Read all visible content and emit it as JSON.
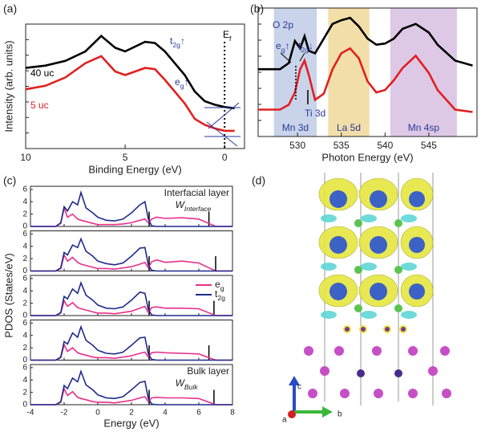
{
  "panel_labels": [
    "(a)",
    "(b)",
    "(c)",
    "(d)"
  ],
  "chart_data": [
    {
      "type": "line",
      "xlabel": "Binding Energy (eV)",
      "ylabel": "Intensity (arb. units)",
      "xlim": [
        10,
        -1
      ],
      "xticks": [
        10,
        5,
        0
      ],
      "ylim": [
        0,
        1.05
      ],
      "x": [
        10,
        9,
        8,
        7,
        6.2,
        5.5,
        5,
        4,
        3.5,
        3,
        2,
        1.5,
        1,
        0.5,
        0,
        -0.5
      ],
      "series": [
        {
          "name": "40 uc",
          "color": "#000000",
          "values": [
            0.68,
            0.7,
            0.74,
            0.82,
            0.95,
            0.85,
            0.82,
            0.9,
            0.89,
            0.82,
            0.62,
            0.48,
            0.4,
            0.37,
            0.35,
            0.34
          ]
        },
        {
          "name": "5 uc",
          "color": "#e02020",
          "values": [
            0.5,
            0.53,
            0.6,
            0.72,
            0.78,
            0.65,
            0.62,
            0.68,
            0.67,
            0.58,
            0.38,
            0.25,
            0.2,
            0.17,
            0.15,
            0.15
          ]
        }
      ],
      "fermi_level": 0,
      "annotations": [
        {
          "base": "t",
          "sub": "2g",
          "tail": "↑",
          "color": "#2a3a9a"
        },
        {
          "base": "e",
          "sub": "g",
          "tail": "↑",
          "color": "#2a3a9a"
        },
        {
          "base": "E",
          "sub": "f",
          "color": "#000000"
        }
      ]
    },
    {
      "type": "line",
      "xlabel": "Photon Energy (eV)",
      "xlim": [
        525.5,
        550.5
      ],
      "xticks": [
        530,
        535,
        540,
        545
      ],
      "ylim": [
        0,
        1.05
      ],
      "x": [
        525.5,
        528,
        529,
        529.7,
        530.3,
        530.8,
        531.3,
        532,
        533,
        534,
        535,
        536,
        537,
        538,
        539,
        540,
        541,
        542,
        543.5,
        545,
        546,
        548,
        550
      ],
      "series": [
        {
          "name": "black",
          "color": "#000000",
          "values": [
            0.55,
            0.55,
            0.6,
            0.78,
            0.72,
            0.82,
            0.7,
            0.68,
            0.8,
            0.92,
            0.95,
            0.97,
            0.9,
            0.8,
            0.75,
            0.76,
            0.8,
            0.88,
            0.92,
            0.85,
            0.75,
            0.62,
            0.58
          ]
        },
        {
          "name": "red",
          "color": "#e02020",
          "values": [
            0.22,
            0.22,
            0.26,
            0.36,
            0.55,
            0.62,
            0.5,
            0.3,
            0.35,
            0.55,
            0.68,
            0.72,
            0.64,
            0.45,
            0.36,
            0.38,
            0.46,
            0.56,
            0.66,
            0.52,
            0.38,
            0.22,
            0.2
          ]
        }
      ],
      "regions": [
        {
          "label": "Mn 3d",
          "from": 527.3,
          "to": 532.2,
          "color": "#c9d4ea"
        },
        {
          "label": "La 5d",
          "from": 533.5,
          "to": 538.2,
          "color": "#f2dea8"
        },
        {
          "label": "Mn 4sp",
          "from": 540.6,
          "to": 548.2,
          "color": "#ddc8e6"
        }
      ],
      "annotations": [
        {
          "base": "O 2p",
          "color": "#2a3a9a"
        },
        {
          "base": "e",
          "sub": "g",
          "tail": "↑",
          "color": "#2a3a9a"
        },
        {
          "base": "t",
          "sub": "2g",
          "tail": "↓",
          "color": "#2a3a9a"
        },
        {
          "base": "Ti 3d",
          "color": "#2a3a9a"
        }
      ]
    },
    {
      "type": "stack",
      "xlabel": "Energy (eV)",
      "ylabel": "PDOS (States/eV)",
      "xlim": [
        -4,
        8
      ],
      "xticks": [
        -4,
        -2,
        0,
        2,
        4,
        6,
        8
      ],
      "ylim": [
        0,
        6.5
      ],
      "yticks": [
        0,
        2,
        4,
        6
      ],
      "x": [
        -4,
        -3,
        -2.5,
        -2.2,
        -2,
        -1.8,
        -1.5,
        -1.2,
        -1,
        -0.7,
        -0.3,
        0,
        0.5,
        1,
        1.5,
        2,
        2.5,
        2.8,
        3,
        3.2,
        3.5,
        4,
        5,
        6,
        7,
        8
      ],
      "series": [
        {
          "name": {
            "base": "e",
            "sub": "g"
          },
          "color": "#e8308a"
        },
        {
          "name": {
            "base": "t",
            "sub": "2g"
          },
          "color": "#1f2a8c"
        }
      ],
      "legend_subplot": 2,
      "subplots": [
        {
          "label": "Interfacial layer",
          "w": {
            "base": "W",
            "sub": "Interface"
          },
          "markers": [
            3.05,
            6.6
          ],
          "series_values": [
            [
              0,
              0,
              0,
              0.5,
              3,
              1.5,
              2,
              1.2,
              1,
              0.8,
              0.5,
              0.3,
              0.3,
              0.3,
              0.4,
              0.6,
              1,
              1.2,
              0.6,
              1.2,
              1.5,
              1.3,
              1.4,
              1.2,
              0,
              0
            ],
            [
              0,
              0,
              0,
              0.6,
              3.2,
              2.5,
              4,
              3.5,
              5.5,
              3,
              2.2,
              1.5,
              1,
              0.9,
              1.2,
              2.2,
              3.5,
              4,
              1.2,
              0.1,
              0,
              0,
              0,
              0,
              0,
              0
            ]
          ]
        },
        {
          "markers": [
            3.05,
            7.0
          ],
          "series_values": [
            [
              0,
              0,
              0,
              0.4,
              2.6,
              1.6,
              2.2,
              1.4,
              1.1,
              0.9,
              0.6,
              0.4,
              0.4,
              0.3,
              0.5,
              0.7,
              1.1,
              1.4,
              0.5,
              1.5,
              1.8,
              1.4,
              1.6,
              1.3,
              0,
              0
            ],
            [
              0,
              0,
              0,
              0.5,
              3,
              2.6,
              4.2,
              3.8,
              5.2,
              3.2,
              2.4,
              1.6,
              1.2,
              1,
              1.3,
              2.4,
              3.7,
              3.8,
              1,
              0.1,
              0,
              0,
              0,
              0,
              0,
              0
            ]
          ]
        },
        {
          "markers": [
            3.05,
            6.9
          ],
          "series_values": [
            [
              0,
              0,
              0,
              0.4,
              2.4,
              1.5,
              2.1,
              1.3,
              1.1,
              0.9,
              0.6,
              0.4,
              0.4,
              0.3,
              0.5,
              0.7,
              1.2,
              1.5,
              0.5,
              1.3,
              1.4,
              1.2,
              1.2,
              1.1,
              0,
              0
            ],
            [
              0,
              0,
              0,
              0.5,
              3.1,
              2.7,
              4.3,
              3.6,
              5.3,
              3.3,
              2.5,
              1.7,
              1.2,
              1.1,
              1.4,
              2.5,
              3.8,
              3.6,
              1,
              0.1,
              0,
              0,
              0,
              0,
              0,
              0
            ]
          ]
        },
        {
          "markers": [
            3.05,
            6.6
          ],
          "series_values": [
            [
              0,
              0,
              0,
              0.4,
              2.5,
              1.4,
              2,
              1.2,
              1,
              0.8,
              0.5,
              0.4,
              0.4,
              0.3,
              0.5,
              0.7,
              1.1,
              1.3,
              0.5,
              1.2,
              1.3,
              1.2,
              1.1,
              1,
              0,
              0
            ],
            [
              0,
              0,
              0,
              0.5,
              3,
              2.6,
              4.4,
              3.7,
              5.4,
              3.2,
              2.4,
              1.6,
              1.1,
              1,
              1.3,
              2.4,
              3.6,
              3.7,
              1,
              0.1,
              0,
              0,
              0,
              0,
              0,
              0
            ]
          ]
        },
        {
          "label": "Bulk layer",
          "w": {
            "base": "W",
            "sub": "Bulk"
          },
          "markers": [
            3.05,
            6.9
          ],
          "series_values": [
            [
              0,
              0,
              0,
              0.4,
              2.6,
              1.5,
              2.1,
              1.2,
              1,
              0.8,
              0.5,
              0.4,
              0.4,
              0.3,
              0.5,
              0.7,
              1.1,
              1.3,
              0.5,
              1.1,
              1.2,
              1.1,
              1.1,
              1,
              0,
              0
            ],
            [
              0,
              0,
              0,
              0.5,
              3.1,
              2.6,
              4.3,
              3.7,
              5.4,
              3.2,
              2.4,
              1.6,
              1.1,
              1,
              1.3,
              2.4,
              3.6,
              3.8,
              1,
              0.1,
              0,
              0,
              0,
              0,
              0,
              0
            ]
          ]
        }
      ]
    }
  ],
  "structure": {
    "axis_labels": [
      "c",
      "a",
      "b"
    ]
  }
}
